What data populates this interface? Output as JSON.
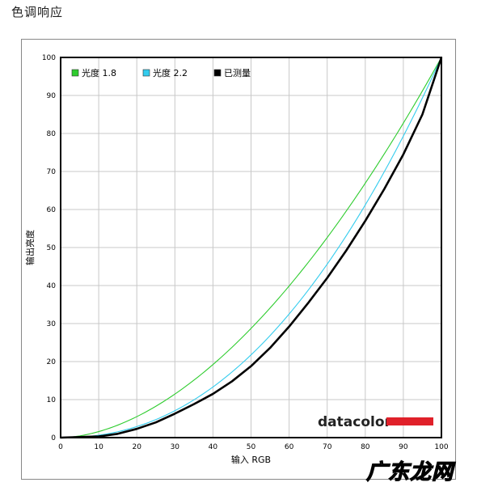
{
  "page": {
    "title": "色调响应"
  },
  "chart_data": {
    "type": "line",
    "xlabel": "输入 RGB",
    "ylabel": "输出亮度",
    "xlim": [
      0,
      100
    ],
    "ylim": [
      0,
      100
    ],
    "xticks": [
      0,
      10,
      20,
      30,
      40,
      50,
      60,
      70,
      80,
      90,
      100
    ],
    "yticks": [
      0,
      10,
      20,
      30,
      40,
      50,
      60,
      70,
      80,
      90,
      100
    ],
    "grid": true,
    "legend_position": "top-left",
    "series": [
      {
        "name": "光度 1.8",
        "color": "#2ecc2e",
        "gamma": 1.8,
        "x": [
          0,
          10,
          20,
          30,
          40,
          50,
          60,
          70,
          80,
          90,
          100
        ],
        "y": [
          0,
          1.6,
          5.5,
          11.5,
          19.2,
          28.7,
          39.9,
          52.6,
          66.9,
          82.7,
          100
        ]
      },
      {
        "name": "光度 2.2",
        "color": "#33ccee",
        "gamma": 2.2,
        "x": [
          0,
          10,
          20,
          30,
          40,
          50,
          60,
          70,
          80,
          90,
          100
        ],
        "y": [
          0,
          0.6,
          2.9,
          7.1,
          13.3,
          21.8,
          32.5,
          45.6,
          61.2,
          79.3,
          100
        ]
      },
      {
        "name": "已测量",
        "color": "#000000",
        "x": [
          0,
          10,
          15,
          20,
          25,
          30,
          35,
          40,
          45,
          50,
          55,
          60,
          65,
          70,
          75,
          80,
          85,
          90,
          95,
          100
        ],
        "y": [
          0,
          0.3,
          1.0,
          2.3,
          4.0,
          6.3,
          8.8,
          11.5,
          14.8,
          18.8,
          23.6,
          29.2,
          35.4,
          42.0,
          49.2,
          57.0,
          65.4,
          74.5,
          85.0,
          100
        ]
      }
    ]
  },
  "logo": {
    "text": "datacolor",
    "bar_color": "#e0202a"
  },
  "watermark": {
    "text": "广东龙网"
  }
}
